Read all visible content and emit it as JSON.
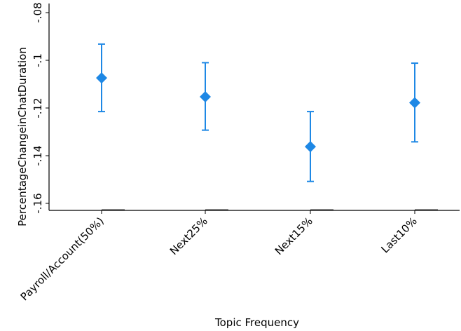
{
  "chart_data": {
    "type": "scatter",
    "title": "",
    "xlabel": "Topic Frequency",
    "ylabel": "PercentageChangeinChatDuration",
    "categories": [
      "Payroll/Account(50%)",
      "Next25%",
      "Next15%",
      "Last10%"
    ],
    "series": [
      {
        "values": [
          -0.1074,
          -0.1153,
          -0.1362,
          -0.1178
        ],
        "lower": [
          -0.1215,
          -0.1293,
          -0.1508,
          -0.1342
        ],
        "upper": [
          -0.0932,
          -0.101,
          -0.1215,
          -0.1012
        ]
      }
    ],
    "ylim": [
      -0.163,
      -0.077
    ],
    "yticks": [
      -0.08,
      -0.1,
      -0.12,
      -0.14,
      -0.16
    ],
    "ytick_labels": [
      "-.08",
      "-.1",
      "-.12",
      "-.14",
      "-.16"
    ],
    "grid": false,
    "legend": "none",
    "colors": {
      "marker": "#1E88E5",
      "axis": "#000000"
    }
  }
}
